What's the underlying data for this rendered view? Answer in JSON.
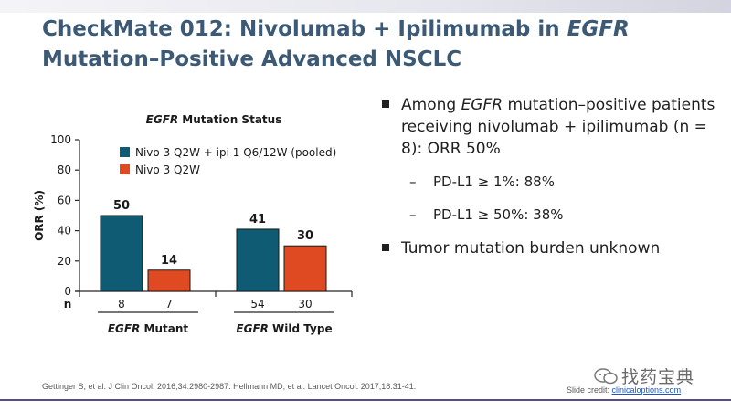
{
  "title": {
    "part1": "CheckMate 012: Nivolumab + Ipilimumab in ",
    "italic": "EGFR",
    "line2": "Mutation–Positive Advanced NSCLC"
  },
  "bullets": [
    {
      "pre": "Among ",
      "italic": "EGFR",
      "post": " mutation–positive patients receiving nivolumab + ipilimumab (n = 8): ORR 50%"
    },
    {
      "sub": true,
      "text": "PD-L1 ≥ 1%: 88%"
    },
    {
      "sub": true,
      "text": "PD-L1 ≥ 50%: 38%"
    },
    {
      "text": "Tumor mutation burden unknown"
    }
  ],
  "citation": "Gettinger S, et al. J Clin Oncol. 2016;34:2980-2987. Hellmann MD, et al. Lancet Oncol. 2017;18:31-41.",
  "credit": {
    "label": "Slide credit: ",
    "link": "clinicaloptions.com"
  },
  "watermark": "找药宝典",
  "colors": {
    "title": "#3c5a75",
    "teal": "#0f5b73",
    "orange": "#e04a23",
    "footer_rule": "#5a4d86"
  },
  "chart_data": {
    "type": "bar",
    "title_italic": "EGFR",
    "title_rest": " Mutation Status",
    "ylabel": "ORR (%)",
    "ylim": [
      0,
      100
    ],
    "yticks": [
      0,
      20,
      40,
      60,
      80,
      100
    ],
    "n_label": "n",
    "legend_position": "top-right",
    "series": [
      {
        "name": "Nivo 3 Q2W + ipi 1 Q6/12W (pooled)",
        "color": "#0f5b73"
      },
      {
        "name": "Nivo 3 Q2W",
        "color": "#e04a23"
      }
    ],
    "groups": [
      {
        "label_italic": "EGFR",
        "label_rest": " Mutant",
        "values": [
          50,
          14
        ],
        "n": [
          "8",
          "7"
        ]
      },
      {
        "label_italic": "EGFR",
        "label_rest": " Wild Type",
        "values": [
          41,
          30
        ],
        "n": [
          "54",
          "30"
        ]
      }
    ]
  }
}
